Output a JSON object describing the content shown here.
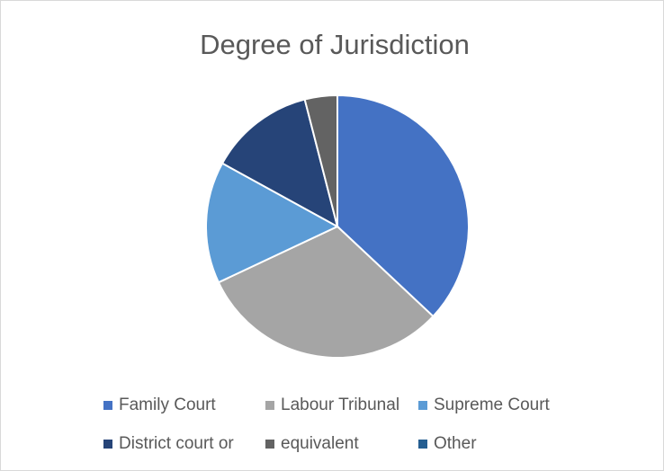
{
  "chart_data": {
    "type": "pie",
    "title": "Degree of Jurisdiction",
    "categories": [
      "Family Court",
      "Labour Tribunal",
      "Supreme Court",
      "District court or",
      "equivalent",
      "Other"
    ],
    "values": [
      37,
      31,
      15,
      13,
      4,
      0
    ],
    "colors": [
      "#4472c4",
      "#a5a5a5",
      "#5b9bd5",
      "#264478",
      "#636363",
      "#255e91"
    ],
    "legend": "bottom"
  }
}
